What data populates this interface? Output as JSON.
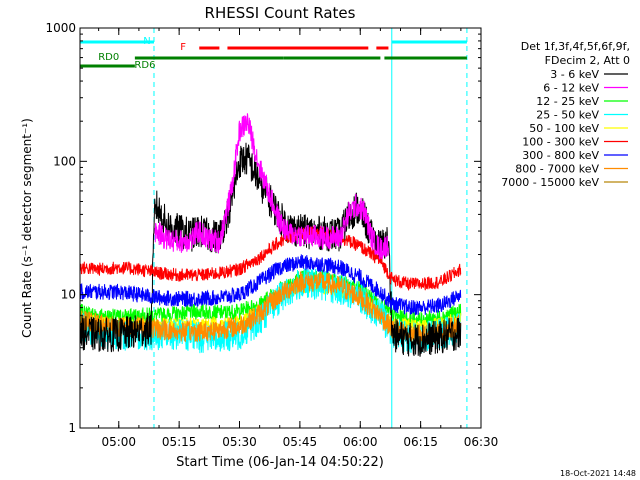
{
  "chart_data": {
    "type": "line",
    "title": "RHESSI Count Rates",
    "xlabel": "Start Time (06-Jan-14 04:50:22)",
    "ylabel": "Count Rate (s⁻¹ detector segment⁻¹)",
    "yscale": "log",
    "ylim": [
      1,
      1000
    ],
    "xlim": [
      "04:50:22",
      "06:30"
    ],
    "x_ticks": [
      "05:00",
      "05:15",
      "05:30",
      "05:45",
      "06:00",
      "06:15",
      "06:30"
    ],
    "y_ticks": [
      "1",
      "10",
      "100",
      "1000"
    ],
    "legend_header": [
      "Det 1f,3f,4f,5f,6f,9f,",
      "FDecim 2, Att 0"
    ],
    "legend_position": "right",
    "footer_date": "18-Oct-2021 14:48",
    "series": [
      {
        "name": "3 - 6 keV",
        "color": "#000000",
        "x": [
          "04:50",
          "04:55",
          "05:00",
          "05:05",
          "05:08",
          "05:09",
          "05:12",
          "05:15",
          "05:18",
          "05:20",
          "05:22",
          "05:25",
          "05:28",
          "05:30",
          "05:32",
          "05:35",
          "05:40",
          "05:42",
          "05:45",
          "05:50",
          "05:55",
          "05:57",
          "05:59",
          "06:01",
          "06:03",
          "06:05",
          "06:07",
          "06:08",
          "06:12",
          "06:15",
          "06:20",
          "06:25"
        ],
        "y": [
          5.2,
          5.0,
          5.0,
          5.3,
          5.5,
          48,
          33,
          30,
          28,
          30,
          28,
          27,
          50,
          100,
          105,
          70,
          38,
          32,
          30,
          29,
          28,
          38,
          45,
          38,
          26,
          23,
          25,
          5.0,
          4.6,
          4.6,
          4.8,
          5.2
        ]
      },
      {
        "name": "6 - 12 keV",
        "color": "#ff00ff",
        "x": [
          "05:09",
          "05:12",
          "05:15",
          "05:18",
          "05:20",
          "05:22",
          "05:25",
          "05:28",
          "05:30",
          "05:32",
          "05:35",
          "05:40",
          "05:42",
          "05:45",
          "05:50",
          "05:55",
          "05:57",
          "05:59",
          "06:01",
          "06:03",
          "06:05",
          "06:07"
        ],
        "y": [
          30,
          26,
          25,
          26,
          30,
          26,
          25,
          60,
          170,
          200,
          90,
          35,
          29,
          28,
          27,
          27,
          40,
          47,
          42,
          26,
          22,
          24
        ]
      },
      {
        "name": "12 - 25 keV",
        "color": "#00ff00",
        "x": [
          "04:50",
          "04:55",
          "05:00",
          "05:05",
          "05:10",
          "05:15",
          "05:20",
          "05:25",
          "05:30",
          "05:35",
          "05:40",
          "05:45",
          "05:50",
          "05:55",
          "06:00",
          "06:05",
          "06:08",
          "06:12",
          "06:15",
          "06:20",
          "06:25"
        ],
        "y": [
          7.5,
          7.0,
          6.8,
          7.0,
          7.0,
          7.2,
          7.5,
          7.3,
          7.5,
          8.5,
          11.0,
          13.5,
          13.5,
          12.5,
          11.0,
          8.5,
          7.0,
          6.5,
          6.5,
          6.8,
          7.5
        ]
      },
      {
        "name": "25 - 50 keV",
        "color": "#00ffff",
        "x": [
          "04:50",
          "04:55",
          "05:00",
          "05:05",
          "05:10",
          "05:15",
          "05:20",
          "05:25",
          "05:30",
          "05:35",
          "05:40",
          "05:45",
          "05:50",
          "05:55",
          "06:00",
          "06:05",
          "06:08",
          "06:12",
          "06:15",
          "06:20",
          "06:25"
        ],
        "y": [
          5.8,
          5.2,
          5.0,
          5.0,
          5.0,
          5.0,
          4.8,
          4.8,
          5.0,
          6.5,
          9.5,
          12.0,
          12.0,
          11.0,
          9.5,
          7.0,
          5.2,
          4.8,
          4.8,
          5.0,
          5.8
        ]
      },
      {
        "name": "50 - 100 keV",
        "color": "#ffff00",
        "x": [
          "04:50",
          "05:00",
          "05:10",
          "05:20",
          "05:30",
          "05:40",
          "05:45",
          "05:50",
          "06:00",
          "06:08",
          "06:15",
          "06:25"
        ],
        "y": [
          6.5,
          6.0,
          6.0,
          6.0,
          6.2,
          9.5,
          11.5,
          11.5,
          9.5,
          6.0,
          5.8,
          6.5
        ]
      },
      {
        "name": "100 - 300 keV",
        "color": "#ff0000",
        "x": [
          "04:50",
          "04:55",
          "05:00",
          "05:05",
          "05:10",
          "05:15",
          "05:20",
          "05:25",
          "05:30",
          "05:35",
          "05:40",
          "05:45",
          "05:50",
          "05:55",
          "06:00",
          "06:05",
          "06:08",
          "06:12",
          "06:15",
          "06:20",
          "06:25"
        ],
        "y": [
          16.0,
          15.5,
          16.0,
          15.5,
          14.5,
          14.0,
          14.0,
          14.5,
          15.5,
          19.0,
          25.0,
          29.0,
          29.0,
          27.0,
          23.0,
          18.0,
          13.0,
          12.0,
          12.0,
          12.5,
          15.5
        ]
      },
      {
        "name": "300 - 800 keV",
        "color": "#0000ff",
        "x": [
          "04:50",
          "04:55",
          "05:00",
          "05:05",
          "05:10",
          "05:15",
          "05:20",
          "05:25",
          "05:30",
          "05:35",
          "05:40",
          "05:45",
          "05:50",
          "05:55",
          "06:00",
          "06:05",
          "06:08",
          "06:12",
          "06:15",
          "06:20",
          "06:25"
        ],
        "y": [
          10.5,
          10.5,
          10.5,
          10.0,
          9.5,
          9.3,
          9.3,
          9.5,
          10.0,
          12.5,
          16.0,
          17.5,
          17.0,
          16.0,
          13.5,
          10.5,
          8.5,
          8.0,
          8.0,
          8.3,
          10.0
        ]
      },
      {
        "name": "800 - 7000 keV",
        "color": "#ff8c00",
        "x": [
          "04:50",
          "04:55",
          "05:00",
          "05:05",
          "05:10",
          "05:15",
          "05:20",
          "05:25",
          "05:30",
          "05:35",
          "05:40",
          "05:45",
          "05:50",
          "05:55",
          "06:00",
          "06:05",
          "06:08",
          "06:12",
          "06:15",
          "06:20",
          "06:25"
        ],
        "y": [
          6.5,
          6.0,
          5.8,
          5.8,
          5.5,
          5.3,
          5.3,
          5.5,
          5.8,
          7.2,
          10.0,
          12.5,
          12.5,
          11.5,
          9.5,
          7.0,
          5.5,
          5.0,
          5.0,
          5.2,
          6.0
        ]
      },
      {
        "name": "7000 - 15000 keV",
        "color": "#b8860b",
        "x": [],
        "y": []
      }
    ],
    "vertical_markers": [
      {
        "time": "04:50:22",
        "style": "solid",
        "color": "#00ffff"
      },
      {
        "time": "05:08:45",
        "style": "dashed",
        "color": "#00ffff"
      },
      {
        "time": "06:07:50",
        "style": "solid",
        "color": "#00ffff"
      },
      {
        "time": "06:26:30",
        "style": "dashed",
        "color": "#00ffff"
      }
    ],
    "flags": [
      {
        "label": "N",
        "color": "#00ffff",
        "segments": [
          [
            "04:50:22",
            "05:08:45"
          ],
          [
            "06:07:50",
            "06:26:30"
          ]
        ]
      },
      {
        "label": "F",
        "color": "#ff0000",
        "segments": [
          [
            "05:20",
            "05:25"
          ],
          [
            "05:27",
            "06:02"
          ],
          [
            "06:04",
            "06:07"
          ]
        ]
      },
      {
        "label": "RD0",
        "color": "#008000",
        "segments": [
          [
            "04:50:22",
            "05:04"
          ]
        ]
      },
      {
        "label": "RD6",
        "color": "#008000",
        "segments": [
          [
            "05:04",
            "05:41"
          ],
          [
            "05:41",
            "06:05"
          ],
          [
            "06:06",
            "06:26:30"
          ]
        ]
      }
    ]
  }
}
